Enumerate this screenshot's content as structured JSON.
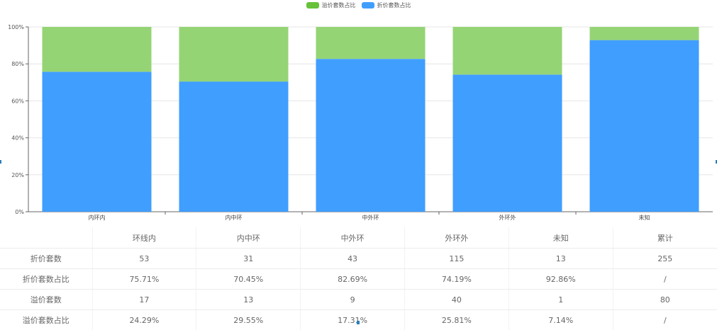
{
  "colors": {
    "premium": "#95d475",
    "discount": "#409eff",
    "premium_legend": "#67c23a",
    "discount_legend": "#409eff"
  },
  "chart_data": {
    "type": "bar",
    "stacked": true,
    "categories": [
      "内环内",
      "内中环",
      "中外环",
      "外环外",
      "未知"
    ],
    "series": [
      {
        "name": "溢价套数占比",
        "values": [
          24.29,
          29.55,
          17.31,
          25.81,
          7.14
        ]
      },
      {
        "name": "折价套数占比",
        "values": [
          75.71,
          70.45,
          82.69,
          74.19,
          92.86
        ]
      }
    ],
    "ylim": [
      0,
      100
    ],
    "yticks": [
      "0%",
      "20%",
      "40%",
      "60%",
      "80%",
      "100%"
    ],
    "ytick_values": [
      0,
      20,
      40,
      60,
      80,
      100
    ],
    "legend_position": "top-center",
    "grid": true
  },
  "table": {
    "headers": [
      "",
      "环线内",
      "内中环",
      "中外环",
      "外环外",
      "未知",
      "累计"
    ],
    "rows": [
      {
        "label": "折价套数",
        "cells": [
          "53",
          "31",
          "43",
          "115",
          "13",
          "255"
        ]
      },
      {
        "label": "折价套数占比",
        "cells": [
          "75.71%",
          "70.45%",
          "82.69%",
          "74.19%",
          "92.86%",
          "/"
        ]
      },
      {
        "label": "溢价套数",
        "cells": [
          "17",
          "13",
          "9",
          "40",
          "1",
          "80"
        ]
      },
      {
        "label": "溢价套数占比",
        "cells": [
          "24.29%",
          "29.55%",
          "17.31%",
          "25.81%",
          "7.14%",
          "/"
        ]
      }
    ]
  }
}
